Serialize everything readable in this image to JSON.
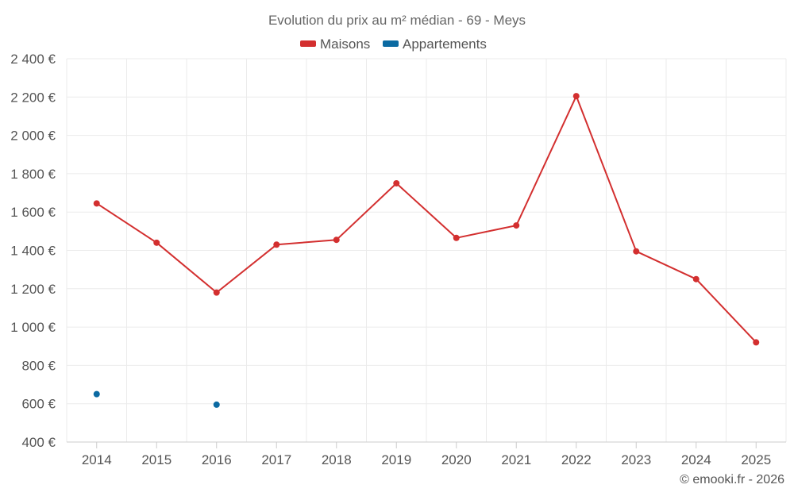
{
  "chart_data": {
    "type": "line",
    "title": "Evolution du prix au m² médian - 69 - Meys",
    "xlabel": "",
    "ylabel": "",
    "categories": [
      "2014",
      "2015",
      "2016",
      "2017",
      "2018",
      "2019",
      "2020",
      "2021",
      "2022",
      "2023",
      "2024",
      "2025"
    ],
    "ylim": [
      400,
      2400
    ],
    "yticks": [
      400,
      600,
      800,
      1000,
      1200,
      1400,
      1600,
      1800,
      2000,
      2200,
      2400
    ],
    "ytick_labels": [
      "400 €",
      "600 €",
      "800 €",
      "1 000 €",
      "1 200 €",
      "1 400 €",
      "1 600 €",
      "1 800 €",
      "2 000 €",
      "2 200 €",
      "2 400 €"
    ],
    "grid": true,
    "legend_position": "top-center",
    "series": [
      {
        "name": "Maisons",
        "color": "#d32f2f",
        "values": [
          1645,
          1440,
          1180,
          1430,
          1455,
          1750,
          1465,
          1530,
          2205,
          1395,
          1250,
          920
        ]
      },
      {
        "name": "Appartements",
        "color": "#0b6aa2",
        "values": [
          650,
          null,
          595,
          null,
          null,
          null,
          null,
          null,
          null,
          null,
          null,
          null
        ]
      }
    ]
  },
  "credit": "© emooki.fr - 2026"
}
